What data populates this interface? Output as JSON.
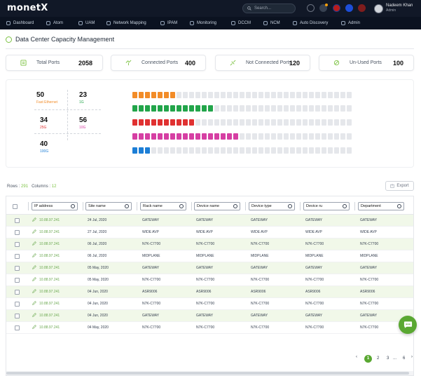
{
  "app": {
    "logo_text": "monetX",
    "search_placeholder": "Search...",
    "user": {
      "name": "Nadeem Khan",
      "role": "Admin"
    }
  },
  "nav": [
    {
      "label": "Dashboard",
      "icon": "dashboard-icon"
    },
    {
      "label": "Atom",
      "icon": "atom-icon"
    },
    {
      "label": "UAM",
      "icon": "uam-icon"
    },
    {
      "label": "Network Mapping",
      "icon": "network-icon"
    },
    {
      "label": "IPAM",
      "icon": "ipam-icon"
    },
    {
      "label": "Monitoring",
      "icon": "monitoring-icon"
    },
    {
      "label": "DCCM",
      "icon": "dccm-icon"
    },
    {
      "label": "NCM",
      "icon": "ncm-icon"
    },
    {
      "label": "Auto Discovery",
      "icon": "discovery-icon"
    },
    {
      "label": "Admin",
      "icon": "admin-icon"
    }
  ],
  "page": {
    "title": "Data Center Capacity Management"
  },
  "stats": [
    {
      "label": "Total Ports",
      "value": "2058",
      "icon": "ports-icon",
      "color": "#7cc242"
    },
    {
      "label": "Connected Ports",
      "value": "400",
      "icon": "connected-icon",
      "color": "#7cc242"
    },
    {
      "label": "Not Connected Ports",
      "value": "120",
      "icon": "not-connected-icon",
      "color": "#7cc242"
    },
    {
      "label": "Un-Used Ports",
      "value": "100",
      "icon": "unused-icon",
      "color": "#7cc242"
    }
  ],
  "port_legend": [
    {
      "value": "50",
      "label": "Fast Ethernet",
      "color": "#f28c28"
    },
    {
      "value": "23",
      "label": "1G",
      "color": "#22a54a"
    },
    {
      "value": "34",
      "label": "25G",
      "color": "#e03131"
    },
    {
      "value": "56",
      "label": "10G",
      "color": "#d63fa3"
    },
    {
      "value": "40",
      "label": "100G",
      "color": "#1c7ed6"
    }
  ],
  "port_rows": [
    {
      "color": "#f28c28",
      "filled": 7
    },
    {
      "color": "#22a54a",
      "filled": 13
    },
    {
      "color": "#e03131",
      "filled": 10
    },
    {
      "color": "#d63fa3",
      "filled": 17
    },
    {
      "color": "#1c7ed6",
      "filled": 3
    }
  ],
  "port_row_total": 35,
  "table_info": {
    "rows_label": "Rows",
    "rows_value": "291",
    "cols_label": "Columns",
    "cols_value": "12"
  },
  "export_label": "Export",
  "columns": [
    "IP address",
    "Site name",
    "Rack name",
    "Device name",
    "Device type",
    "Device ru",
    "Department"
  ],
  "rows": [
    [
      "10.88.97.241",
      "24 Jul, 2020",
      "GATEWAY",
      "GATEWAY",
      "GATEWAY",
      "GATEWAY",
      "GATEWAY"
    ],
    [
      "10.88.97.241",
      "27 Jul, 2020",
      "WIDE AVP",
      "WIDE AVP",
      "WIDE AVP",
      "WIDE AVP",
      "WIDE AVP"
    ],
    [
      "10.88.97.241",
      "06 Jul, 2020",
      "N7K-C7700",
      "N7K-C7700",
      "N7K-C7700",
      "N7K-C7700",
      "N7K-C7700"
    ],
    [
      "10.88.97.241",
      "06 Jul, 2020",
      "MIDPLANE",
      "MIDPLANE",
      "MIDPLANE",
      "MIDPLANE",
      "MIDPLANE"
    ],
    [
      "10.88.97.241",
      "05 May, 2020",
      "GATEWAY",
      "GATEWAY",
      "GATEWAY",
      "GATEWAY",
      "GATEWAY"
    ],
    [
      "10.88.97.241",
      "05 May, 2020",
      "N7K-C7700",
      "N7K-C7700",
      "N7K-C7700",
      "N7K-C7700",
      "N7K-C7700"
    ],
    [
      "10.88.97.241",
      "04 Jun, 2020",
      "ASR9006",
      "ASR9006",
      "ASR9006",
      "ASR9006",
      "ASR9006"
    ],
    [
      "10.88.97.241",
      "04 Jun, 2020",
      "N7K-C7700",
      "N7K-C7700",
      "N7K-C7700",
      "N7K-C7700",
      "N7K-C7700"
    ],
    [
      "10.88.97.241",
      "04 Jun, 2020",
      "GATEWAY",
      "GATEWAY",
      "GATEWAY",
      "GATEWAY",
      "GATEWAY"
    ],
    [
      "10.88.97.241",
      "04 May, 2020",
      "N7K-C7700",
      "N7K-C7700",
      "N7K-C7700",
      "N7K-C7700",
      "N7K-C7700"
    ]
  ],
  "pagination": {
    "pages": [
      "1",
      "2",
      "3",
      "...",
      "6"
    ],
    "current": "1"
  }
}
